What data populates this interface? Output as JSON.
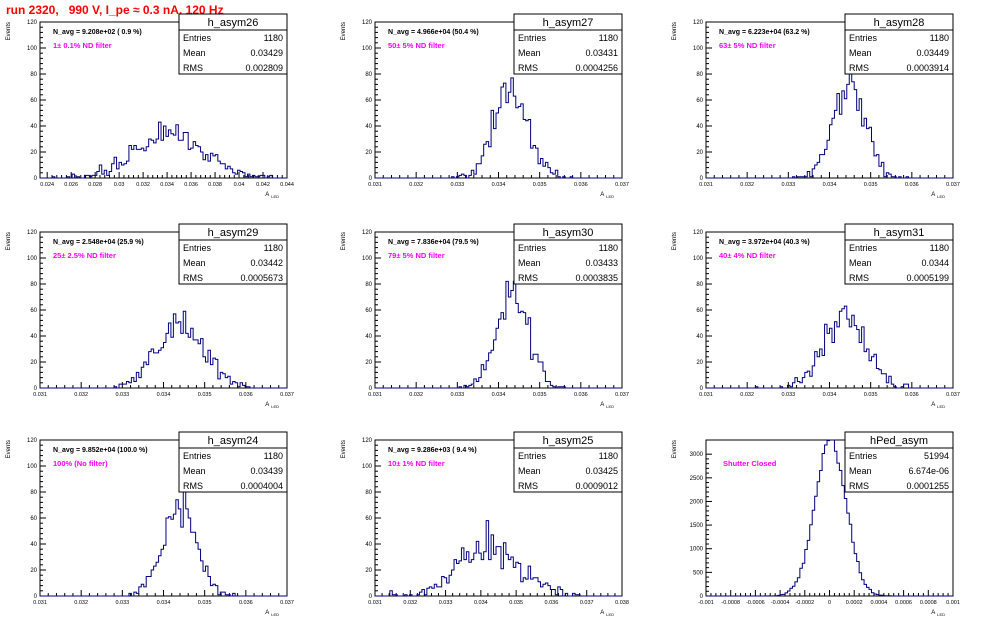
{
  "run_title": "run 2320,   990 V, I_pe ≈ 0.3 nA, 120 Hz",
  "chart_data": [
    {
      "type": "bar",
      "name": "h_asym26",
      "ylabel": "Events",
      "xlabel": "A",
      "xlabel_sub": "LED",
      "xlim": [
        0.0234,
        0.044
      ],
      "ylim": [
        0,
        120
      ],
      "xticks": [
        0.024,
        0.026,
        0.028,
        0.03,
        0.032,
        0.034,
        0.036,
        0.038,
        0.04,
        0.042,
        0.044
      ],
      "xtick_labels": [
        "0.024",
        "0.026",
        "0.028",
        "0.03",
        "0.032",
        "0.034",
        "0.036",
        "0.038",
        "0.04",
        "0.042",
        "0.044"
      ],
      "yticks": [
        0,
        20,
        40,
        60,
        80,
        100,
        120
      ],
      "nbins": 100,
      "stats": {
        "entries": "1180",
        "mean": "0.03429",
        "rms": "0.002809"
      },
      "navg": "N_avg = 9.208e+02 ( 0.9 %)",
      "filter": "1± 0.1% ND filter",
      "color": "#00007f"
    },
    {
      "type": "bar",
      "name": "h_asym27",
      "ylabel": "Events",
      "xlabel": "A",
      "xlabel_sub": "LED",
      "xlim": [
        0.031,
        0.037
      ],
      "ylim": [
        0,
        120
      ],
      "xticks": [
        0.031,
        0.032,
        0.033,
        0.034,
        0.035,
        0.036,
        0.037
      ],
      "xtick_labels": [
        "0.031",
        "0.032",
        "0.033",
        "0.034",
        "0.035",
        "0.036",
        "0.037"
      ],
      "yticks": [
        0,
        20,
        40,
        60,
        80,
        100,
        120
      ],
      "nbins": 100,
      "stats": {
        "entries": "1180",
        "mean": "0.03431",
        "rms": "0.0004256"
      },
      "navg": "N_avg = 4.966e+04 (50.4 %)",
      "filter": "50± 5% ND filter",
      "color": "#00007f"
    },
    {
      "type": "bar",
      "name": "h_asym28",
      "ylabel": "Events",
      "xlabel": "A",
      "xlabel_sub": "LED",
      "xlim": [
        0.031,
        0.037
      ],
      "ylim": [
        0,
        120
      ],
      "xticks": [
        0.031,
        0.032,
        0.033,
        0.034,
        0.035,
        0.036,
        0.037
      ],
      "xtick_labels": [
        "0.031",
        "0.032",
        "0.033",
        "0.034",
        "0.035",
        "0.036",
        "0.037"
      ],
      "yticks": [
        0,
        20,
        40,
        60,
        80,
        100,
        120
      ],
      "nbins": 100,
      "stats": {
        "entries": "1180",
        "mean": "0.03449",
        "rms": "0.0003914"
      },
      "navg": "N_avg = 6.223e+04 (63.2 %)",
      "filter": "63± 5% ND filter",
      "color": "#00007f"
    },
    {
      "type": "bar",
      "name": "h_asym29",
      "ylabel": "Events",
      "xlabel": "A",
      "xlabel_sub": "LED",
      "xlim": [
        0.031,
        0.037
      ],
      "ylim": [
        0,
        120
      ],
      "xticks": [
        0.031,
        0.032,
        0.033,
        0.034,
        0.035,
        0.036,
        0.037
      ],
      "xtick_labels": [
        "0.031",
        "0.032",
        "0.033",
        "0.034",
        "0.035",
        "0.036",
        "0.037"
      ],
      "yticks": [
        0,
        20,
        40,
        60,
        80,
        100,
        120
      ],
      "nbins": 100,
      "stats": {
        "entries": "1180",
        "mean": "0.03442",
        "rms": "0.0005673"
      },
      "navg": "N_avg = 2.548e+04 (25.9 %)",
      "filter": "25± 2.5% ND filter",
      "color": "#00007f"
    },
    {
      "type": "bar",
      "name": "h_asym30",
      "ylabel": "Events",
      "xlabel": "A",
      "xlabel_sub": "LED",
      "xlim": [
        0.031,
        0.037
      ],
      "ylim": [
        0,
        120
      ],
      "xticks": [
        0.031,
        0.032,
        0.033,
        0.034,
        0.035,
        0.036,
        0.037
      ],
      "xtick_labels": [
        "0.031",
        "0.032",
        "0.033",
        "0.034",
        "0.035",
        "0.036",
        "0.037"
      ],
      "yticks": [
        0,
        20,
        40,
        60,
        80,
        100,
        120
      ],
      "nbins": 100,
      "stats": {
        "entries": "1180",
        "mean": "0.03433",
        "rms": "0.0003835"
      },
      "navg": "N_avg = 7.836e+04 (79.5 %)",
      "filter": "79± 5% ND filter",
      "color": "#00007f"
    },
    {
      "type": "bar",
      "name": "h_asym31",
      "ylabel": "Events",
      "xlabel": "A",
      "xlabel_sub": "LED",
      "xlim": [
        0.031,
        0.037
      ],
      "ylim": [
        0,
        120
      ],
      "xticks": [
        0.031,
        0.032,
        0.033,
        0.034,
        0.035,
        0.036,
        0.037
      ],
      "xtick_labels": [
        "0.031",
        "0.032",
        "0.033",
        "0.034",
        "0.035",
        "0.036",
        "0.037"
      ],
      "yticks": [
        0,
        20,
        40,
        60,
        80,
        100,
        120
      ],
      "nbins": 100,
      "stats": {
        "entries": "1180",
        "mean": "0.0344",
        "rms": "0.0005199"
      },
      "navg": "N_avg = 3.972e+04 (40.3 %)",
      "filter": "40± 4% ND filter",
      "color": "#00007f"
    },
    {
      "type": "bar",
      "name": "h_asym24",
      "ylabel": "Events",
      "xlabel": "A",
      "xlabel_sub": "LED",
      "xlim": [
        0.031,
        0.037
      ],
      "ylim": [
        0,
        120
      ],
      "xticks": [
        0.031,
        0.032,
        0.033,
        0.034,
        0.035,
        0.036,
        0.037
      ],
      "xtick_labels": [
        "0.031",
        "0.032",
        "0.033",
        "0.034",
        "0.035",
        "0.036",
        "0.037"
      ],
      "yticks": [
        0,
        20,
        40,
        60,
        80,
        100,
        120
      ],
      "nbins": 100,
      "stats": {
        "entries": "1180",
        "mean": "0.03439",
        "rms": "0.0004004"
      },
      "navg": "N_avg = 9.852e+04 (100.0 %)",
      "filter": "100% (No filter)",
      "color": "#00007f"
    },
    {
      "type": "bar",
      "name": "h_asym25",
      "ylabel": "Events",
      "xlabel": "A",
      "xlabel_sub": "LED",
      "xlim": [
        0.031,
        0.038
      ],
      "ylim": [
        0,
        120
      ],
      "xticks": [
        0.031,
        0.032,
        0.033,
        0.034,
        0.035,
        0.036,
        0.037,
        0.038
      ],
      "xtick_labels": [
        "0.031",
        "0.032",
        "0.033",
        "0.034",
        "0.035",
        "0.036",
        "0.037",
        "0.038"
      ],
      "yticks": [
        0,
        20,
        40,
        60,
        80,
        100,
        120
      ],
      "nbins": 100,
      "stats": {
        "entries": "1180",
        "mean": "0.03425",
        "rms": "0.0009012"
      },
      "navg": "N_avg = 9.286e+03 ( 9.4 %)",
      "filter": "10± 1% ND filter",
      "color": "#00007f"
    },
    {
      "type": "bar",
      "name": "hPed_asym",
      "ylabel": "Events",
      "xlabel": "A",
      "xlabel_sub": "LED",
      "xlim": [
        -0.001,
        0.001
      ],
      "ylim": [
        0,
        3300
      ],
      "xticks": [
        -0.001,
        -0.0008,
        -0.0006,
        -0.0004,
        -0.0002,
        0,
        0.0002,
        0.0004,
        0.0006,
        0.0008,
        0.001
      ],
      "xtick_labels": [
        "-0.001",
        "-0.0008",
        "-0.0006",
        "-0.0004",
        "-0.0002",
        "0",
        "0.0002",
        "0.0004",
        "0.0006",
        "0.0008",
        "0.001"
      ],
      "yticks": [
        0,
        500,
        1000,
        1500,
        2000,
        2500,
        3000
      ],
      "nbins": 100,
      "stats": {
        "entries": "51994",
        "mean": "6.674e-06",
        "rms": "0.0001255"
      },
      "navg": "",
      "filter": "Shutter Closed",
      "color": "#00007f"
    }
  ]
}
